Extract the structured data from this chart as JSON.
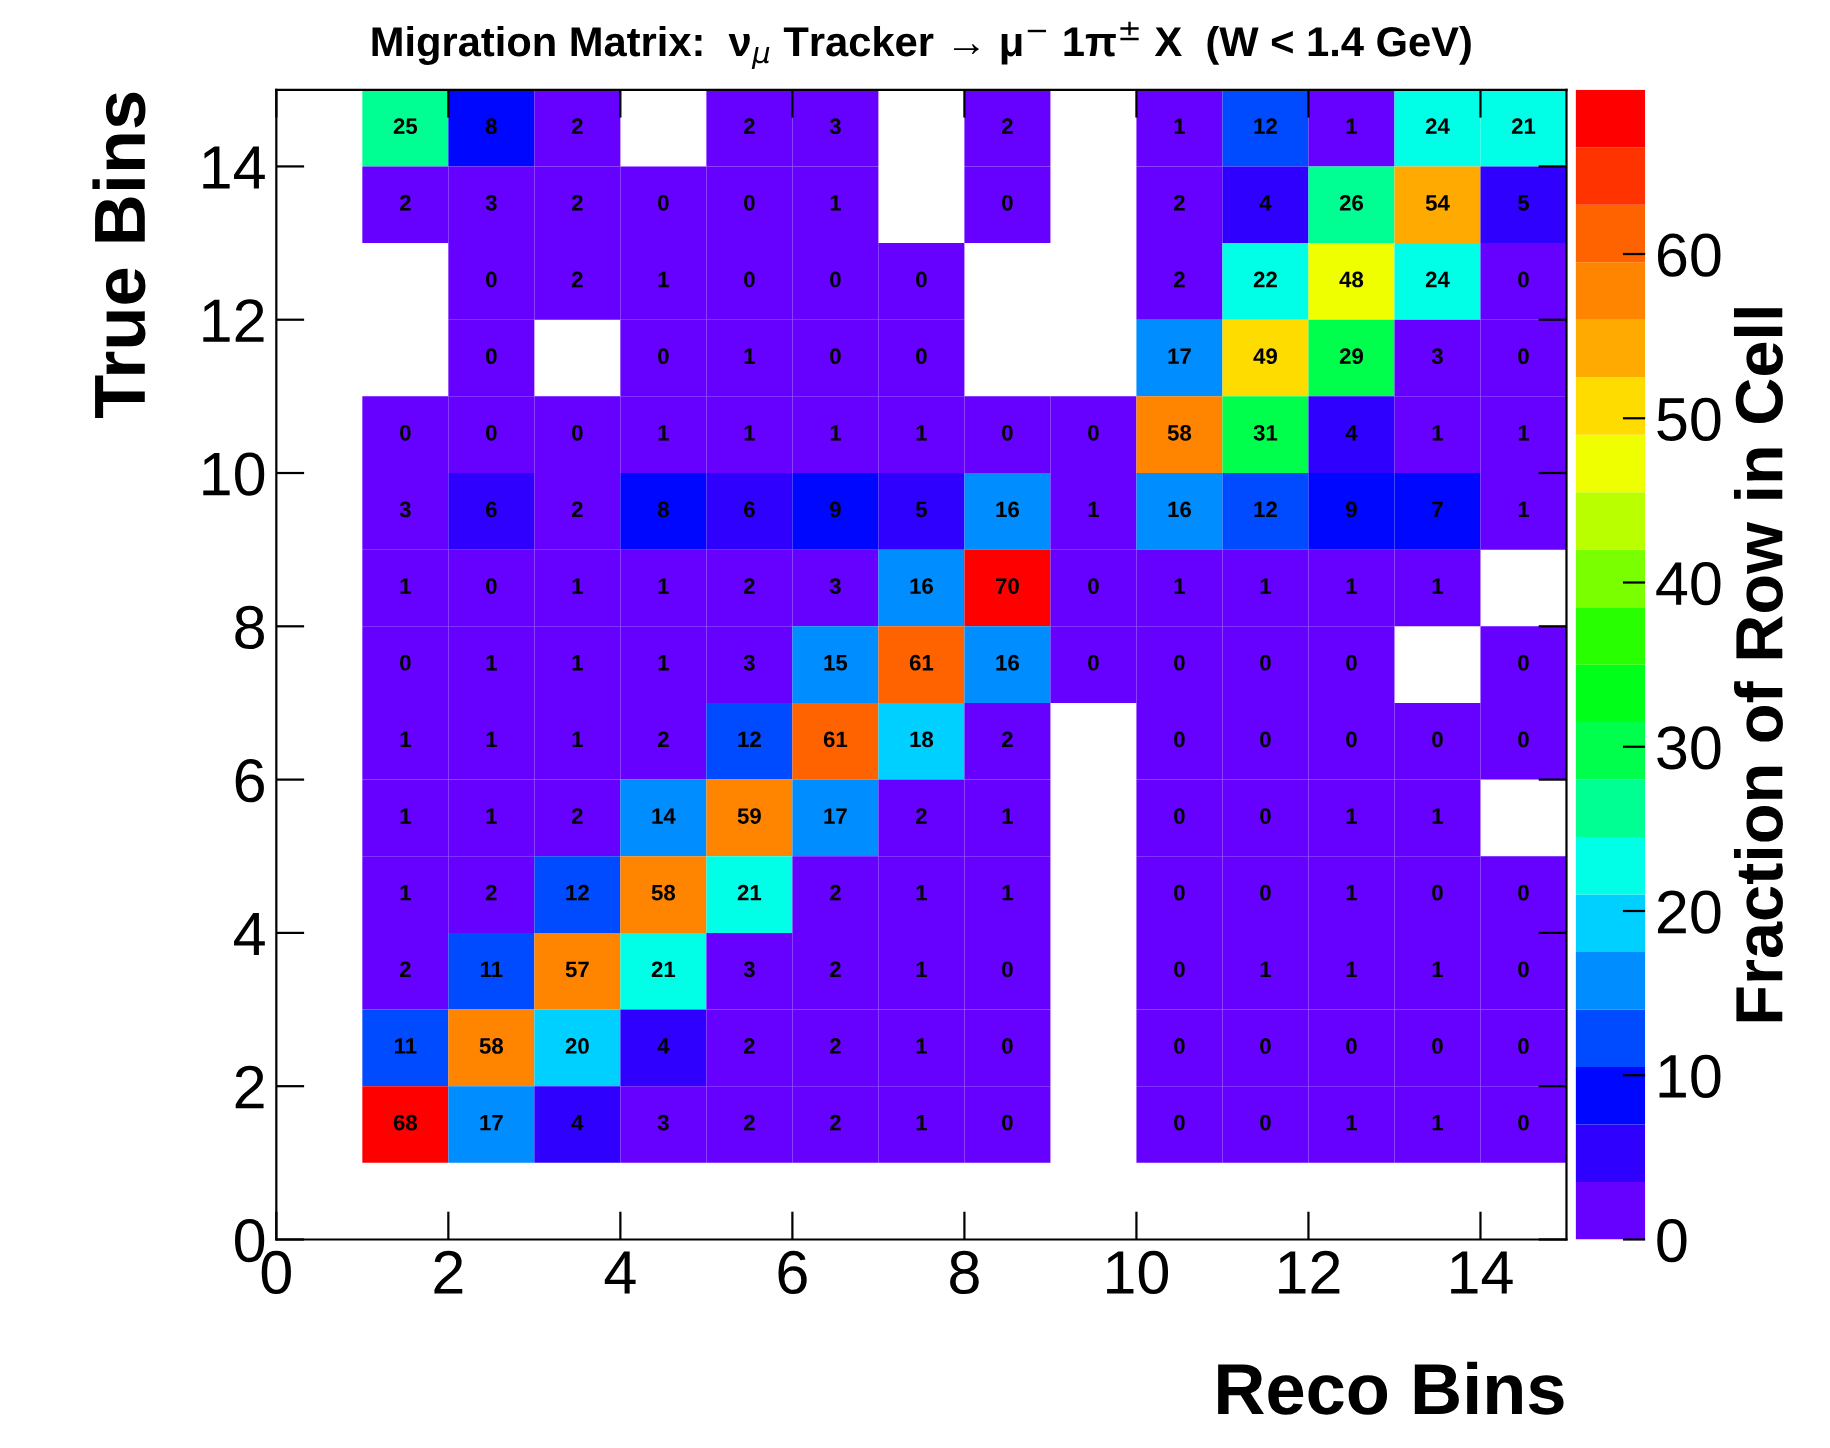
{
  "chart_data": {
    "type": "heatmap",
    "title": "Migration Matrix:  ν$_{μ}$ Tracker → μ$^{−}$ 1π$^{±}$ X  (W < 1.4 GeV)",
    "xlabel": "Reco Bins",
    "ylabel": "True Bins",
    "clabel": "Fraction of Row in Cell",
    "x": [
      1.5,
      2.5,
      3.5,
      4.5,
      5.5,
      6.5,
      7.5,
      8.5,
      9.5,
      10.5,
      11.5,
      12.5,
      13.5,
      14.5
    ],
    "y": [
      14.5,
      13.5,
      12.5,
      11.5,
      10.5,
      9.5,
      8.5,
      7.5,
      6.5,
      5.5,
      4.5,
      3.5,
      2.5,
      1.5
    ],
    "cells": [
      [
        25,
        8,
        2,
        null,
        2,
        3,
        null,
        2,
        null,
        1,
        12,
        1,
        24,
        21
      ],
      [
        2,
        3,
        2,
        0,
        0,
        1,
        null,
        0,
        null,
        2,
        4,
        26,
        54,
        5
      ],
      [
        null,
        0,
        2,
        1,
        0,
        0,
        0,
        null,
        null,
        2,
        22,
        48,
        24,
        0
      ],
      [
        null,
        0,
        null,
        0,
        1,
        0,
        0,
        null,
        null,
        17,
        49,
        29,
        3,
        0
      ],
      [
        0,
        0,
        0,
        1,
        1,
        1,
        1,
        0,
        0,
        58,
        31,
        4,
        1,
        1
      ],
      [
        3,
        6,
        2,
        8,
        6,
        9,
        5,
        16,
        1,
        16,
        12,
        9,
        7,
        1
      ],
      [
        1,
        0,
        1,
        1,
        2,
        3,
        16,
        70,
        0,
        1,
        1,
        1,
        1,
        null
      ],
      [
        0,
        1,
        1,
        1,
        3,
        15,
        61,
        16,
        0,
        0,
        0,
        0,
        null,
        0
      ],
      [
        1,
        1,
        1,
        2,
        12,
        61,
        18,
        2,
        null,
        0,
        0,
        0,
        0,
        0
      ],
      [
        1,
        1,
        2,
        14,
        59,
        17,
        2,
        1,
        null,
        0,
        0,
        1,
        1,
        null
      ],
      [
        1,
        2,
        12,
        58,
        21,
        2,
        1,
        1,
        null,
        0,
        0,
        1,
        0,
        0
      ],
      [
        2,
        11,
        57,
        21,
        3,
        2,
        1,
        0,
        null,
        0,
        1,
        1,
        1,
        0
      ],
      [
        11,
        58,
        20,
        4,
        2,
        2,
        1,
        0,
        null,
        0,
        0,
        0,
        0,
        0
      ],
      [
        68,
        17,
        4,
        3,
        2,
        2,
        1,
        0,
        null,
        0,
        0,
        1,
        1,
        0
      ]
    ],
    "data_labels": true,
    "xlim": [
      0,
      15
    ],
    "ylim": [
      0,
      15
    ],
    "xticks": [
      0,
      2,
      4,
      6,
      8,
      10,
      12,
      14
    ],
    "yticks": [
      0,
      2,
      4,
      6,
      8,
      10,
      12,
      14
    ],
    "clim": [
      0,
      70
    ],
    "cticks": [
      0,
      10,
      20,
      30,
      40,
      50,
      60
    ]
  }
}
